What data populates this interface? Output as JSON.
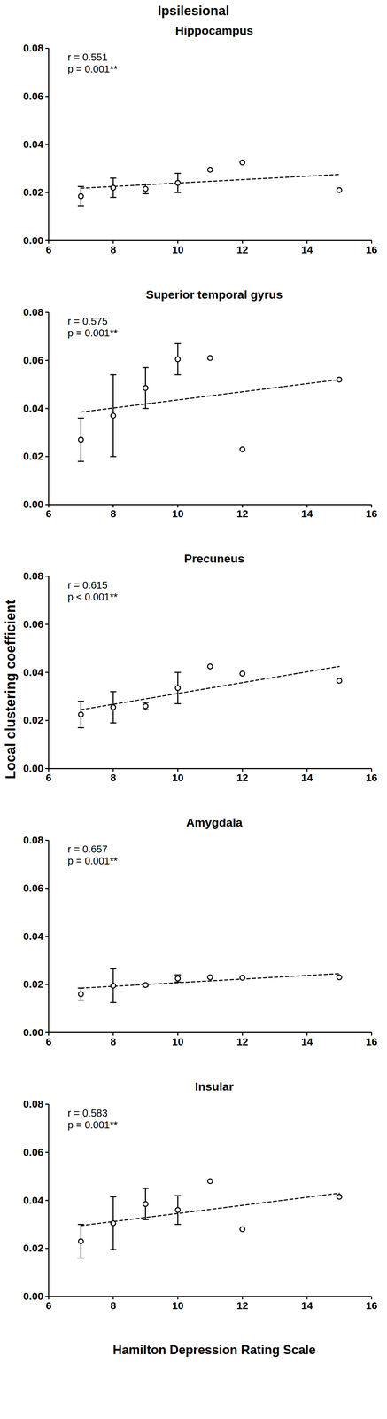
{
  "title": "Ipsilesional",
  "y_label": "Local clustering coefficient",
  "x_label": "Hamilton Depression Rating Scale",
  "chart_data": [
    {
      "type": "scatter",
      "title": "Hippocampus",
      "color": "#000000",
      "marker": "circle",
      "x": [
        7,
        8,
        9,
        10,
        11,
        12,
        15
      ],
      "values": [
        0.0185,
        0.022,
        0.0215,
        0.024,
        0.0295,
        0.0325,
        0.021
      ],
      "error": [
        0.004,
        0.004,
        0.002,
        0.004,
        null,
        null,
        null
      ],
      "trend_line": {
        "x": [
          7,
          15
        ],
        "values": [
          0.0218,
          0.0275
        ],
        "line_style": "dashed"
      },
      "annotations": [
        "r = 0.551",
        "p = 0.001**"
      ],
      "xlim": [
        6,
        16
      ],
      "xticks": [
        6,
        8,
        10,
        12,
        14,
        16
      ],
      "ylim": [
        0,
        0.08
      ],
      "yticks": [
        {
          "value": 0,
          "label": "0.00"
        },
        {
          "value": 0.02,
          "label": "0.02"
        },
        {
          "value": 0.04,
          "label": "0.04"
        },
        {
          "value": 0.06,
          "label": "0.06"
        },
        {
          "value": 0.08,
          "label": "0.08"
        }
      ]
    },
    {
      "type": "scatter",
      "title": "Superior temporal gyrus",
      "color": "#000000",
      "marker": "circle",
      "x": [
        7,
        8,
        9,
        10,
        11,
        12,
        15
      ],
      "values": [
        0.027,
        0.037,
        0.0485,
        0.0605,
        0.061,
        0.023,
        0.052
      ],
      "error": [
        0.009,
        0.017,
        0.0085,
        0.0065,
        null,
        null,
        null
      ],
      "trend_line": {
        "x": [
          7,
          15
        ],
        "values": [
          0.0385,
          0.052
        ],
        "line_style": "dashed"
      },
      "annotations": [
        "r = 0.575",
        "p = 0.001**"
      ],
      "xlim": [
        6,
        16
      ],
      "xticks": [
        6,
        8,
        10,
        12,
        14,
        16
      ],
      "ylim": [
        0,
        0.08
      ],
      "yticks": [
        {
          "value": 0,
          "label": "0.00"
        },
        {
          "value": 0.02,
          "label": "0.02"
        },
        {
          "value": 0.04,
          "label": "0.04"
        },
        {
          "value": 0.06,
          "label": "0.06"
        },
        {
          "value": 0.08,
          "label": "0.08"
        }
      ]
    },
    {
      "type": "scatter",
      "title": "Precuneus",
      "color": "#000000",
      "marker": "circle",
      "x": [
        7,
        8,
        9,
        10,
        11,
        12,
        15
      ],
      "values": [
        0.0225,
        0.0255,
        0.026,
        0.0335,
        0.0425,
        0.0395,
        0.0365
      ],
      "error": [
        0.0055,
        0.0065,
        0.0015,
        0.0065,
        null,
        null,
        null
      ],
      "trend_line": {
        "x": [
          7,
          15
        ],
        "values": [
          0.0245,
          0.0425
        ],
        "line_style": "dashed"
      },
      "annotations": [
        "r = 0.615",
        "p < 0.001**"
      ],
      "xlim": [
        6,
        16
      ],
      "xticks": [
        6,
        8,
        10,
        12,
        14,
        16
      ],
      "ylim": [
        0,
        0.08
      ],
      "yticks": [
        {
          "value": 0,
          "label": "0.00"
        },
        {
          "value": 0.02,
          "label": "0.02"
        },
        {
          "value": 0.04,
          "label": "0.04"
        },
        {
          "value": 0.06,
          "label": "0.06"
        },
        {
          "value": 0.08,
          "label": "0.08"
        }
      ]
    },
    {
      "type": "scatter",
      "title": "Amygdala",
      "color": "#000000",
      "marker": "circle",
      "x": [
        7,
        8,
        9,
        10,
        11,
        12,
        15
      ],
      "values": [
        0.016,
        0.0195,
        0.0198,
        0.0225,
        0.023,
        0.0228,
        0.023
      ],
      "error": [
        0.0025,
        0.007,
        0.0005,
        0.0015,
        null,
        null,
        null
      ],
      "trend_line": {
        "x": [
          7,
          15
        ],
        "values": [
          0.0185,
          0.0245
        ],
        "line_style": "dashed"
      },
      "annotations": [
        "r = 0.657",
        "p = 0.001**"
      ],
      "xlim": [
        6,
        16
      ],
      "xticks": [
        6,
        8,
        10,
        12,
        14,
        16
      ],
      "ylim": [
        0,
        0.08
      ],
      "yticks": [
        {
          "value": 0,
          "label": "0.00"
        },
        {
          "value": 0.02,
          "label": "0.02"
        },
        {
          "value": 0.04,
          "label": "0.04"
        },
        {
          "value": 0.06,
          "label": "0.06"
        },
        {
          "value": 0.08,
          "label": "0.08"
        }
      ]
    },
    {
      "type": "scatter",
      "title": "Insular",
      "color": "#000000",
      "marker": "circle",
      "x": [
        7,
        8,
        9,
        10,
        11,
        12,
        15
      ],
      "values": [
        0.023,
        0.0305,
        0.0385,
        0.036,
        0.048,
        0.028,
        0.0415
      ],
      "error": [
        0.007,
        0.011,
        0.0065,
        0.006,
        null,
        null,
        null
      ],
      "trend_line": {
        "x": [
          7,
          15
        ],
        "values": [
          0.0295,
          0.043
        ],
        "line_style": "dashed"
      },
      "annotations": [
        "r = 0.583",
        "p = 0.001**"
      ],
      "xlim": [
        6,
        16
      ],
      "xticks": [
        6,
        8,
        10,
        12,
        14,
        16
      ],
      "ylim": [
        0,
        0.08
      ],
      "yticks": [
        {
          "value": 0,
          "label": "0.00"
        },
        {
          "value": 0.02,
          "label": "0.02"
        },
        {
          "value": 0.04,
          "label": "0.04"
        },
        {
          "value": 0.06,
          "label": "0.06"
        },
        {
          "value": 0.08,
          "label": "0.08"
        }
      ]
    }
  ]
}
